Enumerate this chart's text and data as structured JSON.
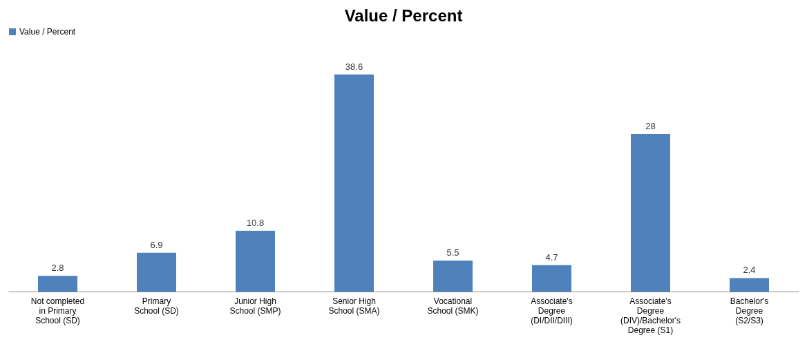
{
  "chart_data": {
    "type": "bar",
    "title": "Value / Percent",
    "categories": [
      "Not completed in Primary School (SD)",
      "Primary School (SD)",
      "Junior High School (SMP)",
      "Senior High School (SMA)",
      "Vocational School (SMK)",
      "Associate's Degree (DI/DII/DIII)",
      "Associate's Degree (DIV)/Bachelor's Degree (S1)",
      "Bachelor's Degree (S2/S3)"
    ],
    "series": [
      {
        "name": "Value / Percent",
        "color": "#4f81bd",
        "values": [
          2.8,
          6.9,
          10.8,
          38.6,
          5.5,
          4.7,
          28,
          2.4
        ]
      }
    ],
    "data_labels": true,
    "legend": "top",
    "grid": false
  }
}
